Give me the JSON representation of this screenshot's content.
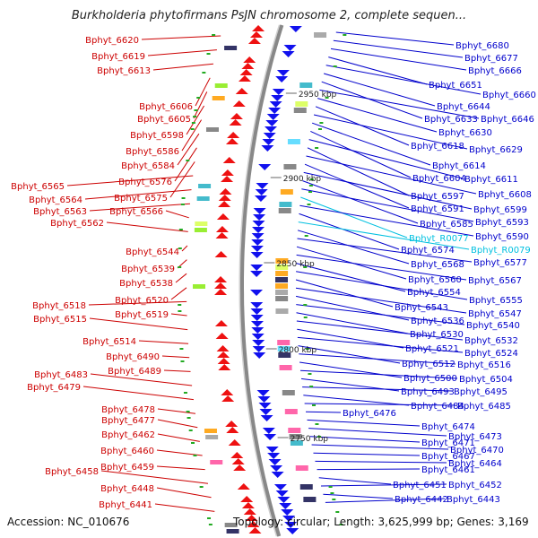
{
  "title": "Burkholderia phytofirmans PsJN chromosome 2, complete sequen...",
  "footer": {
    "accession": "Accession: NC_010676",
    "topology": "Topology: circular; Length: 3,625,999 bp; Genes: 3,169"
  },
  "colors": {
    "left_label": "#cc0000",
    "right_label": "#0000cc",
    "rna_label": "#00c0e0",
    "forward_arrow": "#ee1111",
    "reverse_arrow": "#1111ee",
    "backbone": "#888888"
  },
  "scale": [
    {
      "label": "2950 kbp",
      "kbp": 2950
    },
    {
      "label": "2900 kbp",
      "kbp": 2900
    },
    {
      "label": "2850 kbp",
      "kbp": 2850
    },
    {
      "label": "2800 kbp",
      "kbp": 2800
    },
    {
      "label": "2750 kbp",
      "kbp": 2750
    }
  ],
  "left_genes": [
    "Bphyt_6620",
    "Bphyt_6619",
    "Bphyt_6613",
    "Bphyt_6606",
    "Bphyt_6605",
    "Bphyt_6598",
    "Bphyt_6586",
    "Bphyt_6584",
    "Bphyt_6576",
    "Bphyt_6575",
    "Bphyt_6565",
    "Bphyt_6564",
    "Bphyt_6563",
    "Bphyt_6566",
    "Bphyt_6562",
    "Bphyt_6544",
    "Bphyt_6539",
    "Bphyt_6538",
    "Bphyt_6520",
    "Bphyt_6518",
    "Bphyt_6519",
    "Bphyt_6515",
    "Bphyt_6514",
    "Bphyt_6490",
    "Bphyt_6489",
    "Bphyt_6483",
    "Bphyt_6479",
    "Bphyt_6478",
    "Bphyt_6477",
    "Bphyt_6462",
    "Bphyt_6460",
    "Bphyt_6459",
    "Bphyt_6458",
    "Bphyt_6448",
    "Bphyt_6441"
  ],
  "right_genes": [
    "Bphyt_6680",
    "Bphyt_6677",
    "Bphyt_6666",
    "Bphyt_6651",
    "Bphyt_6660",
    "Bphyt_6644",
    "Bphyt_6633",
    "Bphyt_6646",
    "Bphyt_6630",
    "Bphyt_6618",
    "Bphyt_6629",
    "Bphyt_6614",
    "Bphyt_6604",
    "Bphyt_6611",
    "Bphyt_6597",
    "Bphyt_6608",
    "Bphyt_6591",
    "Bphyt_6599",
    "Bphyt_6585",
    "Bphyt_6593",
    "Bphyt_R0077",
    "Bphyt_6590",
    "Bphyt_6574",
    "Bphyt_R0079",
    "Bphyt_6568",
    "Bphyt_6577",
    "Bphyt_6560",
    "Bphyt_6567",
    "Bphyt_6554",
    "Bphyt_6555",
    "Bphyt_6543",
    "Bphyt_6547",
    "Bphyt_6536",
    "Bphyt_6540",
    "Bphyt_6530",
    "Bphyt_6532",
    "Bphyt_6521",
    "Bphyt_6524",
    "Bphyt_6512",
    "Bphyt_6516",
    "Bphyt_6500",
    "Bphyt_6504",
    "Bphyt_6493",
    "Bphyt_6495",
    "Bphyt_6484",
    "Bphyt_6485",
    "Bphyt_6476",
    "Bphyt_6474",
    "Bphyt_6473",
    "Bphyt_6471",
    "Bphyt_6470",
    "Bphyt_6467",
    "Bphyt_6464",
    "Bphyt_6461",
    "Bphyt_6451",
    "Bphyt_6452",
    "Bphyt_6442",
    "Bphyt_6443"
  ],
  "rna_genes": [
    "Bphyt_R0077",
    "Bphyt_R0079"
  ]
}
